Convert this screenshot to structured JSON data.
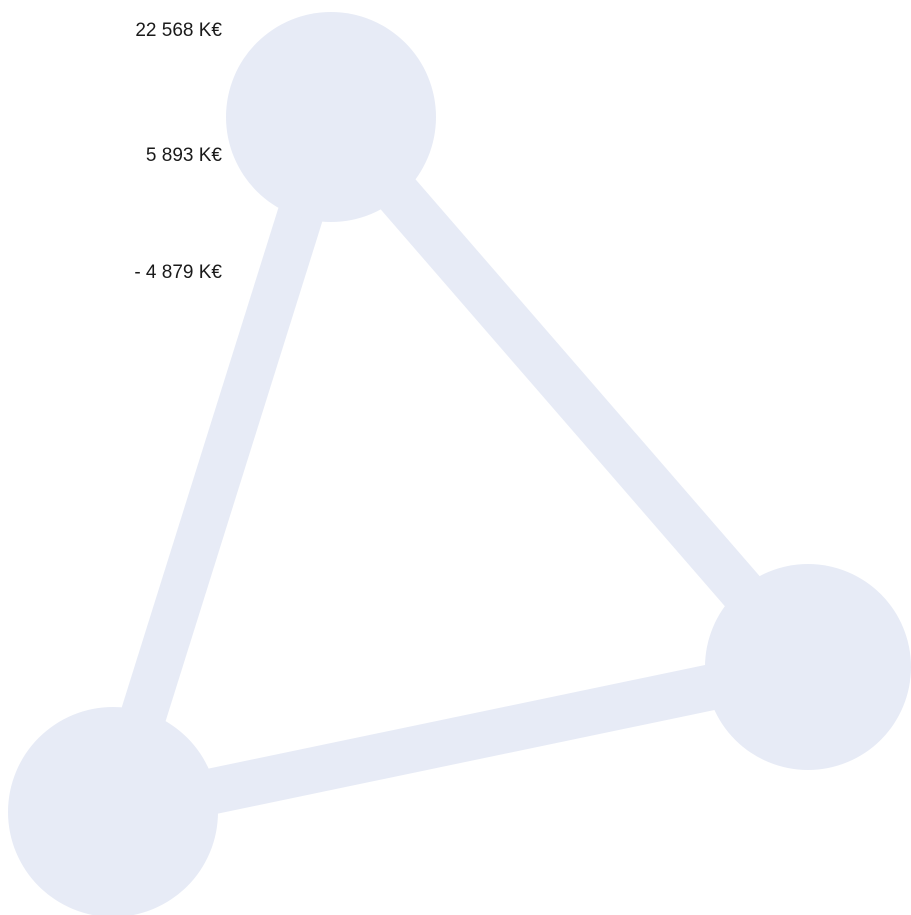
{
  "labels": [
    "22 568 K€",
    "5 893 K€",
    "- 4 879 K€"
  ]
}
